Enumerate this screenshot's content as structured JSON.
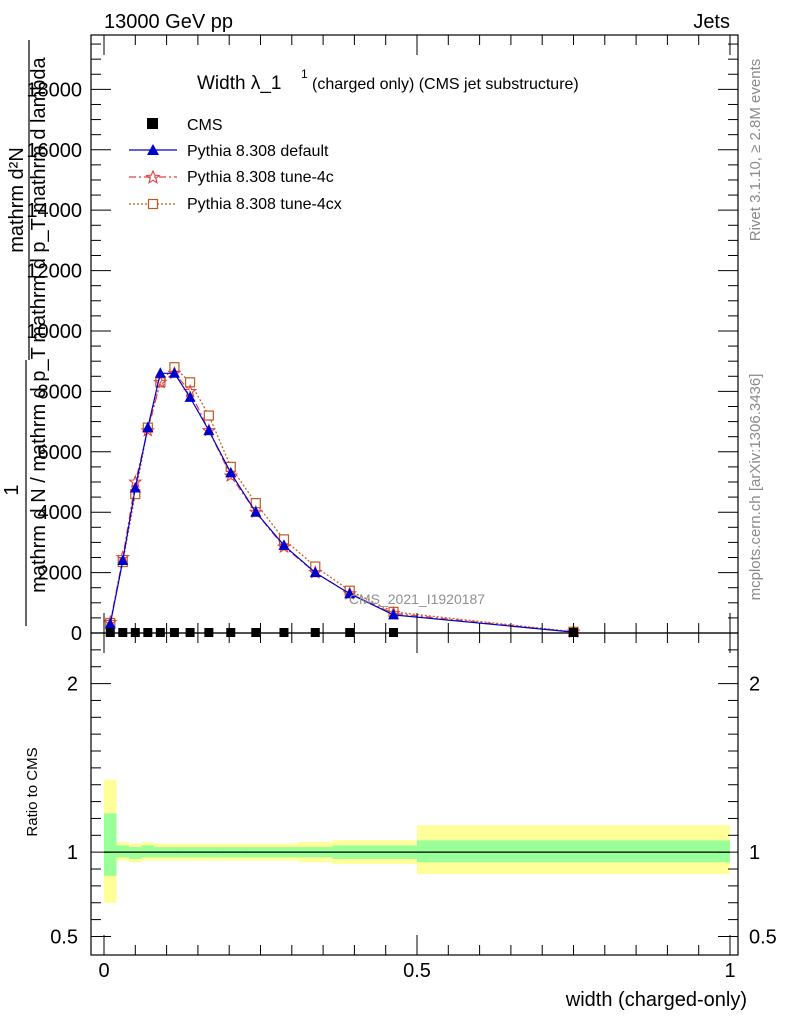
{
  "header": {
    "energy": "13000 GeV pp",
    "category": "Jets"
  },
  "side_labels": {
    "rivet": "Rivet 3.1.10, ≥ 2.8M events",
    "mcplots": "mcplots.cern.ch [arXiv:1306.3436]"
  },
  "watermark": "CMS_2021_I1920187",
  "chart_data": [
    {
      "type": "line",
      "title_main": "Width λ_1",
      "title_sup": "1",
      "title_rest": "(charged only) (CMS jet substructure)",
      "ylabel_parts": [
        "mathrm d²N",
        "mathrm d p_T mathrm d lambda",
        "1",
        "mathrm d N / mathrm d p_T"
      ],
      "ylabel_sub": "T",
      "xlim": [
        0,
        1
      ],
      "ylim": [
        0,
        19800
      ],
      "yticks": [
        0,
        2000,
        4000,
        6000,
        8000,
        10000,
        12000,
        14000,
        16000,
        18000
      ],
      "ytick_labels": [
        "0",
        "2000",
        "4000",
        "6000",
        "8000",
        "10000",
        "12000",
        "14000",
        "16000",
        "18000"
      ],
      "x": [
        0.01,
        0.03,
        0.05,
        0.07,
        0.09,
        0.1125,
        0.1375,
        0.1675,
        0.2025,
        0.2425,
        0.2875,
        0.3375,
        0.3925,
        0.4625,
        0.75
      ],
      "legend_position": "top-left",
      "series": [
        {
          "name": "CMS",
          "marker": "square",
          "color": "#000000",
          "values": [
            0,
            0,
            0,
            0,
            0,
            0,
            0,
            0,
            0,
            0,
            0,
            0,
            0,
            0,
            0
          ]
        },
        {
          "name": "Pythia 8.308 default",
          "marker": "triangle",
          "color": "#0000cc",
          "dash": "",
          "values": [
            300,
            2400,
            4800,
            6800,
            8600,
            8600,
            7800,
            6700,
            5300,
            4000,
            2900,
            2000,
            1300,
            600,
            30
          ]
        },
        {
          "name": "Pythia 8.308 tune-4c",
          "marker": "star",
          "color": "#e04040",
          "dash": "7,3,2,3",
          "values": [
            350,
            2500,
            5000,
            6700,
            8300,
            8600,
            8000,
            6700,
            5200,
            4000,
            2850,
            2000,
            1300,
            650,
            30
          ]
        },
        {
          "name": "Pythia 8.308 tune-4cx",
          "marker": "open-square",
          "color": "#c05a20",
          "dash": "2,2",
          "values": [
            330,
            2350,
            4600,
            6800,
            8300,
            8800,
            8300,
            7200,
            5500,
            4300,
            3100,
            2200,
            1400,
            700,
            40
          ]
        }
      ]
    },
    {
      "type": "area",
      "ylabel": "Ratio to CMS",
      "xlabel": "width (charged-only)",
      "xlim": [
        0,
        1
      ],
      "ylim": [
        0.39,
        2.3
      ],
      "xticks": [
        0,
        0.5,
        1
      ],
      "xtick_labels": [
        "0",
        "0.5",
        "1"
      ],
      "yticks": [
        0.5,
        1,
        2
      ],
      "ytick_labels": [
        "0.5",
        "1",
        "2"
      ],
      "colors": {
        "inner_band": "#99ff99",
        "outer_band": "#ffff99"
      },
      "bins": [
        {
          "x0": 0.0,
          "x1": 0.02,
          "inner": [
            0.86,
            1.23
          ],
          "outer": [
            0.7,
            1.43
          ]
        },
        {
          "x0": 0.02,
          "x1": 0.04,
          "inner": [
            0.97,
            1.04
          ],
          "outer": [
            0.95,
            1.06
          ]
        },
        {
          "x0": 0.04,
          "x1": 0.06,
          "inner": [
            0.96,
            1.03
          ],
          "outer": [
            0.94,
            1.05
          ]
        },
        {
          "x0": 0.06,
          "x1": 0.08,
          "inner": [
            0.97,
            1.04
          ],
          "outer": [
            0.95,
            1.06
          ]
        },
        {
          "x0": 0.08,
          "x1": 0.1,
          "inner": [
            0.97,
            1.03
          ],
          "outer": [
            0.95,
            1.05
          ]
        },
        {
          "x0": 0.1,
          "x1": 0.125,
          "inner": [
            0.97,
            1.03
          ],
          "outer": [
            0.95,
            1.05
          ]
        },
        {
          "x0": 0.125,
          "x1": 0.15,
          "inner": [
            0.97,
            1.03
          ],
          "outer": [
            0.95,
            1.05
          ]
        },
        {
          "x0": 0.15,
          "x1": 0.185,
          "inner": [
            0.97,
            1.03
          ],
          "outer": [
            0.95,
            1.05
          ]
        },
        {
          "x0": 0.185,
          "x1": 0.22,
          "inner": [
            0.97,
            1.03
          ],
          "outer": [
            0.95,
            1.05
          ]
        },
        {
          "x0": 0.22,
          "x1": 0.265,
          "inner": [
            0.97,
            1.03
          ],
          "outer": [
            0.95,
            1.05
          ]
        },
        {
          "x0": 0.265,
          "x1": 0.31,
          "inner": [
            0.97,
            1.03
          ],
          "outer": [
            0.95,
            1.05
          ]
        },
        {
          "x0": 0.31,
          "x1": 0.365,
          "inner": [
            0.97,
            1.03
          ],
          "outer": [
            0.94,
            1.06
          ]
        },
        {
          "x0": 0.365,
          "x1": 0.42,
          "inner": [
            0.96,
            1.04
          ],
          "outer": [
            0.93,
            1.07
          ]
        },
        {
          "x0": 0.42,
          "x1": 0.5,
          "inner": [
            0.96,
            1.04
          ],
          "outer": [
            0.93,
            1.07
          ]
        },
        {
          "x0": 0.5,
          "x1": 1.0,
          "inner": [
            0.94,
            1.07
          ],
          "outer": [
            0.87,
            1.16
          ]
        }
      ]
    }
  ]
}
